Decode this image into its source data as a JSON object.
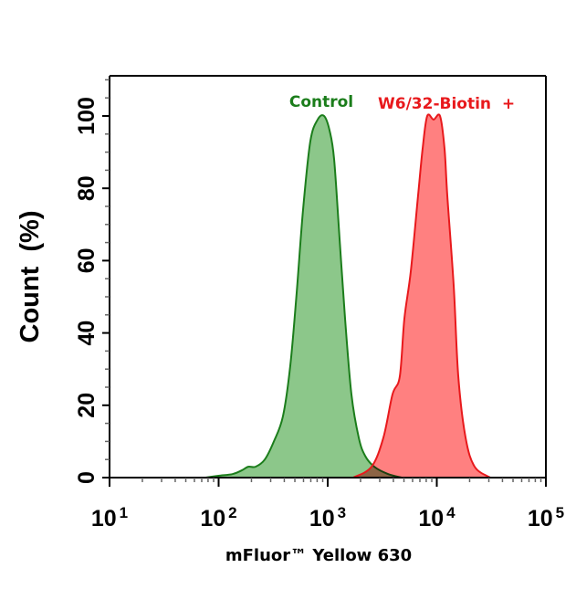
{
  "chart_data": {
    "type": "area",
    "title": "",
    "xlabel": "mFluor™ Yellow 630",
    "ylabel": "Count  (%)",
    "xscale": "log",
    "xlim": [
      10,
      100000
    ],
    "ylim": [
      0,
      110
    ],
    "xticks": [
      {
        "base": "10",
        "exp": "1",
        "value": 10
      },
      {
        "base": "10",
        "exp": "2",
        "value": 100
      },
      {
        "base": "10",
        "exp": "3",
        "value": 1000
      },
      {
        "base": "10",
        "exp": "4",
        "value": 10000
      },
      {
        "base": "10",
        "exp": "5",
        "value": 100000
      }
    ],
    "yticks": [
      "0",
      "20",
      "40",
      "60",
      "80",
      "100"
    ],
    "grid": false,
    "legend": "annotations above peaks",
    "series": [
      {
        "name": "Control",
        "stroke": "#1b7d1b",
        "fill": "#8cc78a",
        "x": [
          76,
          100,
          135,
          163,
          187,
          218,
          265,
          321,
          389,
          454,
          519,
          594,
          693,
          809,
          926,
          1040,
          1145,
          1285,
          1442,
          1650,
          1927,
          2205,
          2673,
          3566,
          4762
        ],
        "y": [
          0,
          0.5,
          1,
          2,
          3,
          3,
          5,
          10,
          17,
          31,
          51,
          74,
          93,
          99,
          100,
          96,
          88,
          66,
          44,
          23,
          11,
          6,
          3,
          1,
          0
        ]
      },
      {
        "name": "W6/32-Biotin  +",
        "stroke": "#e8191c",
        "fill": "#ff8080",
        "x": [
          1714,
          2523,
          3236,
          3926,
          4581,
          5047,
          5775,
          6735,
          7417,
          8170,
          9354,
          10700,
          11770,
          12480,
          14290,
          15740,
          18370,
          22250,
          30900
        ],
        "y": [
          0,
          3,
          11,
          23,
          28,
          44,
          57,
          78,
          91,
          100,
          99,
          100,
          91,
          78,
          53,
          28,
          11,
          3,
          0
        ]
      }
    ]
  }
}
